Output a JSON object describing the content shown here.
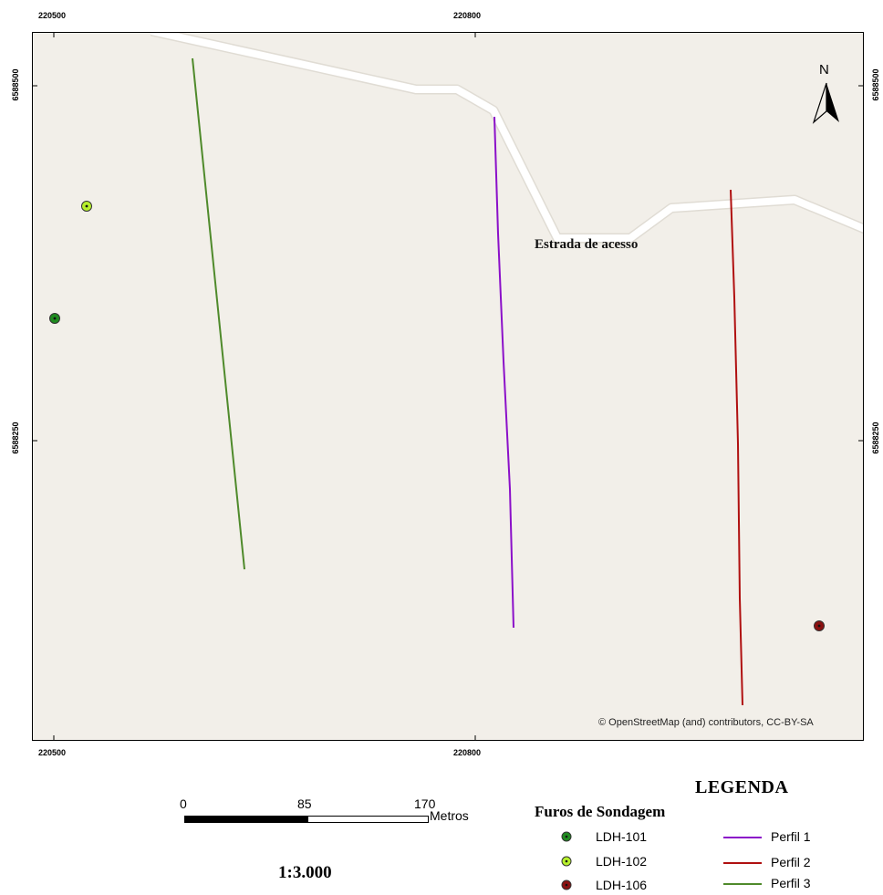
{
  "map": {
    "x_ticks": [
      "220500",
      "220800"
    ],
    "y_ticks": [
      "6588500",
      "6588250"
    ],
    "road_label": "Estrada de acesso",
    "attribution": "© OpenStreetMap (and) contributors, CC-BY-SA",
    "north_label": "N",
    "colors": {
      "background": "#f2efe9",
      "road": "#ffffff",
      "perfil1": "#8b10c9",
      "perfil2": "#b01010",
      "perfil3": "#4f8a2b",
      "ldh101": "#1f8a1f",
      "ldh102": "#b6f02b",
      "ldh106": "#8a1010"
    }
  },
  "scalebar": {
    "ticks": [
      "0",
      "85",
      "170"
    ],
    "unit": "Metros"
  },
  "scale_text": "1:3.000",
  "legend": {
    "title": "LEGENDA",
    "points_title": "Furos de Sondagem",
    "points": [
      {
        "label": "LDH-101",
        "color": "#1f8a1f"
      },
      {
        "label": "LDH-102",
        "color": "#b6f02b"
      },
      {
        "label": "LDH-106",
        "color": "#8a1010"
      }
    ],
    "lines": [
      {
        "label": "Perfil 1",
        "color": "#8b10c9"
      },
      {
        "label": "Perfil 2",
        "color": "#b01010"
      },
      {
        "label": "Perfil 3",
        "color": "#4f8a2b"
      }
    ]
  }
}
